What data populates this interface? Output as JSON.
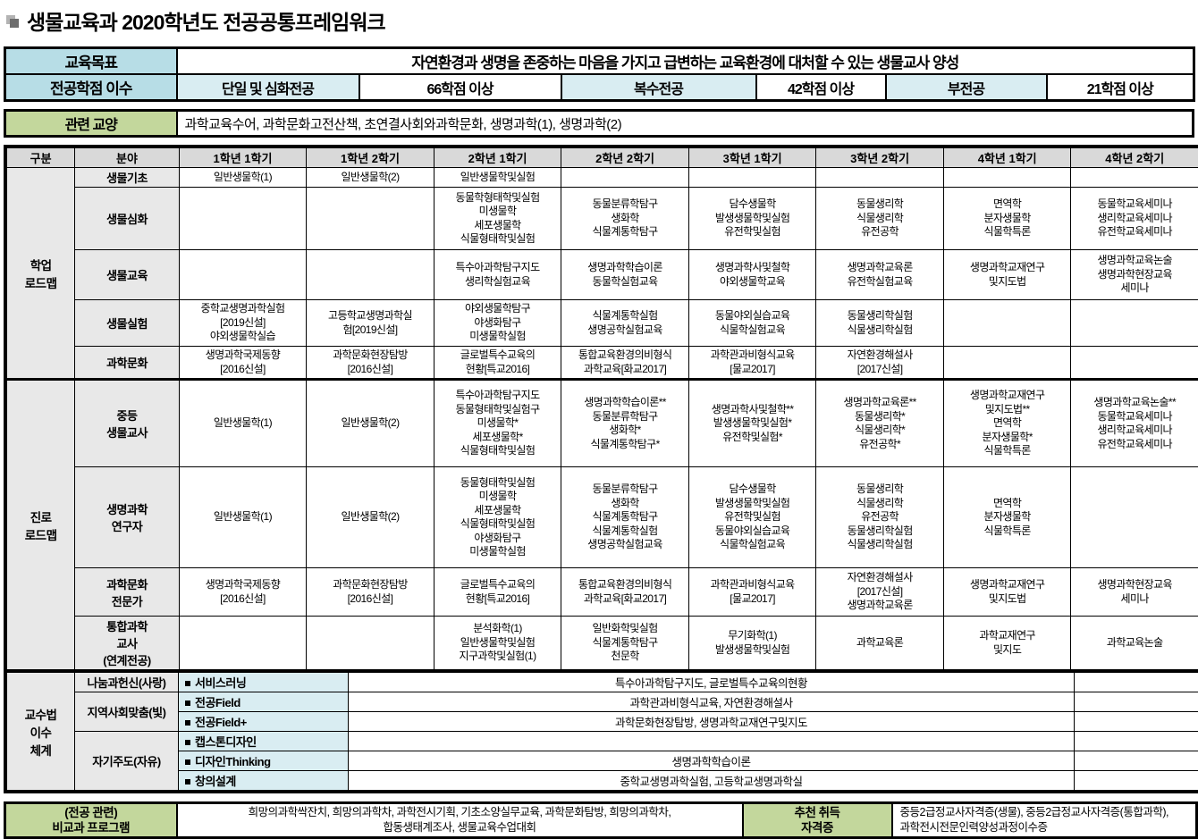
{
  "title": "생물교육과 2020학년도 전공공통프레임워크",
  "colors": {
    "teal": "#b7dde6",
    "lightcyan": "#d9edf2",
    "green": "#c3d79c",
    "header_gray": "#d9d9d9",
    "label_gray": "#e8e8e8"
  },
  "goal": {
    "label": "교육목표",
    "value": "자연환경과 생명을 존중하는 마음을 가지고 급변하는 교육환경에 대처할 수 있는 생물교사 양성"
  },
  "credits": {
    "label": "전공학점 이수",
    "items": [
      {
        "name": "단일 및 심화전공",
        "value": "66학점 이상"
      },
      {
        "name": "복수전공",
        "value": "42학점 이상"
      },
      {
        "name": "부전공",
        "value": "21학점 이상"
      }
    ]
  },
  "liberal": {
    "label": "관련 교양",
    "value": "과학교육수어, 과학문화고전산책, 초연결사회와과학문화, 생명과학(1), 생명과학(2)"
  },
  "roadmap": {
    "headers": [
      "구분",
      "분야",
      "1학년 1학기",
      "1학년 2학기",
      "2학년 1학기",
      "2학년 2학기",
      "3학년 1학기",
      "3학년 2학기",
      "4학년 1학기",
      "4학년 2학기"
    ],
    "groups": [
      {
        "label": "학업\n로드맵",
        "rows": [
          {
            "field": "생물기초",
            "cells": [
              "일반생물학(1)",
              "일반생물학(2)",
              "일반생물학및실험",
              "",
              "",
              "",
              "",
              ""
            ]
          },
          {
            "field": "생물심화",
            "cells": [
              "",
              "",
              "동물학형태학및실험\n미생물학\n세포생물학\n식물형태학및실험",
              "동물분류학탐구\n생화학\n식물계통학탐구",
              "담수생물학\n발생생물학및실험\n유전학및실험",
              "동물생리학\n식물생리학\n유전공학",
              "면역학\n분자생물학\n식물학특론",
              "동물학교육세미나\n생리학교육세미나\n유전학교육세미나"
            ]
          },
          {
            "field": "생물교육",
            "cells": [
              "",
              "",
              "특수아과학탐구지도\n생리학실험교육",
              "생명과학학습이론\n동물학실험교육",
              "생명과학사및철학\n야외생물학교육",
              "생명과학교육론\n유전학실험교육",
              "생명과학교재연구\n및지도법",
              "생명과학교육논술\n생명과학현장교육\n세미나"
            ]
          },
          {
            "field": "생물실험",
            "cells": [
              "중학교생명과학실험\n[2019신설]\n야외생물학실습",
              "고등학교생명과학실\n험[2019신설]",
              "야외생물학탐구\n야생화탐구\n미생물학실험",
              "식물계통학실험\n생명공학실험교육",
              "동물야외실습교육\n식물학실험교육",
              "동물생리학실험\n식물생리학실험",
              "",
              ""
            ]
          },
          {
            "field": "과학문화",
            "cells": [
              "생명과학국제동향\n[2016신설]",
              "과학문화현장탐방\n[2016신설]",
              "글로벌특수교육의\n현황[특교2016]",
              "통합교육환경의비형식\n과학교육[화교2017]",
              "과학관과비형식교육\n[물교2017]",
              "자연환경해설사\n[2017신설]",
              "",
              ""
            ]
          }
        ]
      },
      {
        "label": "진로\n로드맵",
        "rows": [
          {
            "field": "중등\n생물교사",
            "cells": [
              "일반생물학(1)",
              "일반생물학(2)",
              "특수아과학탐구지도\n동물형태학및실험구\n미생물학*\n세포생물학*\n식물형태학및실험",
              "생명과학학습이론**\n동물분류학탐구\n생화학*\n식물계통학탐구*",
              "생명과학사및철학**\n발생생물학및실험*\n유전학및실험*",
              "생명과학교육론**\n동물생리학*\n식물생리학*\n유전공학*",
              "생명과학교재연구\n및지도법**\n면역학\n분자생물학*\n식물학특론",
              "생명과학교육논술**\n동물학교육세미나\n생리학교육세미나\n유전학교육세미나"
            ]
          },
          {
            "field": "생명과학\n연구자",
            "cells": [
              "일반생물학(1)",
              "일반생물학(2)",
              "동물형태학및실험\n미생물학\n세포생물학\n식물형태학및실험\n야생화탐구\n미생물학실험",
              "동물분류학탐구\n생화학\n식물계통학탐구\n식물계통학실험\n생명공학실험교육",
              "담수생물학\n발생생물학및실험\n유전학및실험\n동물야외실습교육\n식물학실험교육",
              "동물생리학\n식물생리학\n유전공학\n동물생리학실험\n식물생리학실험",
              "면역학\n분자생물학\n식물학특론",
              ""
            ]
          },
          {
            "field": "과학문화\n전문가",
            "cells": [
              "생명과학국제동향\n[2016신설]",
              "과학문화현장탐방\n[2016신설]",
              "글로벌특수교육의\n현황[특교2016]",
              "통합교육환경의비형식\n과학교육[화교2017]",
              "과학관과비형식교육\n[물교2017]",
              "자연환경해설사\n[2017신설]\n생명과학교육론",
              "생명과학교재연구\n및지도법",
              "생명과학현장교육\n세미나"
            ]
          },
          {
            "field": "통합과학\n교사\n(연계전공)",
            "cells": [
              "",
              "",
              "분석화학(1)\n일반생물학및실험\n지구과학및실험(1)",
              "일반화학및실험\n식물계통학탐구\n천문학",
              "무기화학(1)\n발생생물학및실험",
              "과학교육론",
              "과학교재연구\n및지도",
              "과학교육논술"
            ]
          }
        ]
      }
    ]
  },
  "pedagogy": {
    "label": "교수법\n이수\n체계",
    "categories": [
      {
        "label": "나눔과헌신(사랑)",
        "methods": [
          {
            "name": "서비스러닝",
            "content": "특수아과학탐구지도, 글로벌특수교육의현황"
          }
        ]
      },
      {
        "label": "지역사회맞춤(빛)",
        "methods": [
          {
            "name": "전공Field",
            "content": "과학관과비형식교육, 자연환경해설사"
          },
          {
            "name": "전공Field+",
            "content": "과학문화현장탐방, 생명과학교재연구및지도"
          }
        ]
      },
      {
        "label": "자기주도(자유)",
        "methods": [
          {
            "name": "캡스톤디자인",
            "content": ""
          },
          {
            "name": "디자인Thinking",
            "content": "생명과학학습이론"
          },
          {
            "name": "창의설계",
            "content": "중학교생명과학실험, 고등학교생명과학실"
          }
        ]
      }
    ]
  },
  "bottom": {
    "program_label": "(전공 관련)\n비교과 프로그램",
    "program_value": "희망의과학싹잔치, 희망의과학차, 과학전시기획, 기초소양실무교육, 과학문화탐방, 희망의과학차,\n합동생태계조사, 생물교육수업대회",
    "cert_label": "추천 취득\n자격증",
    "cert_value": "중등2급정교사자격증(생물), 중등2급정교사자격증(통합과학),\n과학전시전문인력양성과정이수증"
  }
}
